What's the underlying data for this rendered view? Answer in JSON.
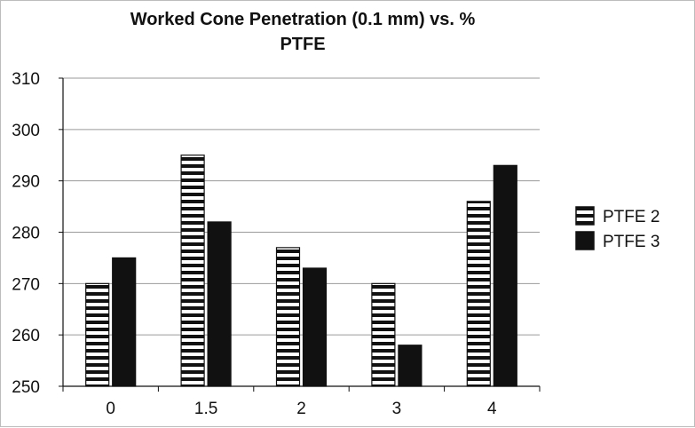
{
  "chart_data": {
    "type": "bar",
    "title": "Worked Cone Penetration (0.1 mm) vs. % PTFE",
    "title_lines": [
      "Worked Cone Penetration (0.1 mm) vs. %",
      "PTFE"
    ],
    "xlabel": "",
    "ylabel": "",
    "categories": [
      "0",
      "1.5",
      "2",
      "3",
      "4"
    ],
    "series": [
      {
        "name": "PTFE 2",
        "values": [
          270,
          295,
          277,
          270,
          286
        ],
        "fill": "striped",
        "color": "#111111"
      },
      {
        "name": "PTFE 3",
        "values": [
          275,
          282,
          273,
          258,
          293
        ],
        "fill": "solid",
        "color": "#111111"
      }
    ],
    "ylim": [
      250,
      310
    ],
    "yticks": [
      250,
      260,
      270,
      280,
      290,
      300,
      310
    ],
    "grid": true,
    "legend_position": "right"
  }
}
